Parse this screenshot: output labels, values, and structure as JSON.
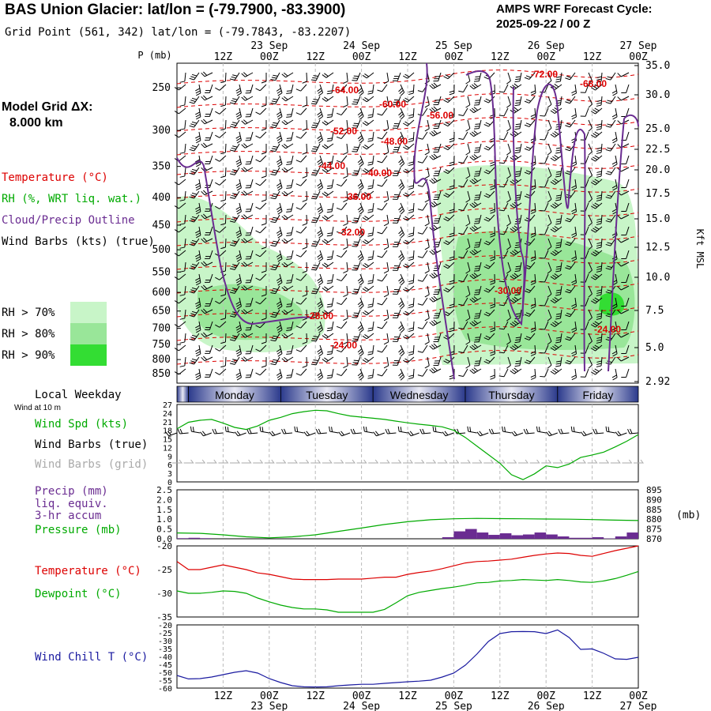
{
  "header": {
    "title": "BAS Union Glacier:  lat/lon = (-79.7900, -83.3900)",
    "subtitle": "Grid Point (561, 342) lat/lon = (-79.7843, -83.2207)",
    "cycle_line1": "AMPS WRF Forecast Cycle:",
    "cycle_line2": "2025-09-22 / 00  Z"
  },
  "side": {
    "grid_label_1": "Model Grid ΔX:",
    "grid_label_2": "8.000 km",
    "legend_temperature": "Temperature (°C)",
    "legend_rh": "RH (%, WRT liq. wat.)",
    "legend_cloud": "Cloud/Precip Outline",
    "legend_wind": "Wind Barbs (kts) (true)",
    "rh70": "RH > 70%",
    "rh80": "RH > 80%",
    "rh90": "RH > 90%",
    "colors": {
      "temperature": "#dd0000",
      "rh": "#00aa00",
      "cloud": "#6a2c91",
      "rh70": "#c8f5c8",
      "rh80": "#99e699",
      "rh90": "#33dd33"
    }
  },
  "chart_data": [
    {
      "type": "heatmap",
      "panel": "cross-section",
      "ylabel": "P (mb)",
      "y_right_label": "Kft MSL",
      "pressure_ticks": [
        "250",
        "300",
        "350",
        "400",
        "450",
        "500",
        "550",
        "600",
        "650",
        "700",
        "750",
        "800",
        "850"
      ],
      "height_ticks": [
        "35.0",
        "30.0",
        "25.0",
        "22.5",
        "20.0",
        "17.5",
        "15.0",
        "12.5",
        "10.0",
        "7.5",
        "5.0",
        "2.92"
      ],
      "time_ticks_top": [
        "12Z",
        "00Z",
        "12Z",
        "00Z",
        "12Z",
        "00Z",
        "12Z",
        "00Z",
        "12Z",
        "00Z"
      ],
      "date_ticks_top": [
        "23 Sep",
        "24 Sep",
        "25 Sep",
        "26 Sep",
        "27 Sep"
      ],
      "temperature_labels": [
        "-64.00",
        "-60.00",
        "-56.00",
        "-72.00",
        "-68.00",
        "-52.00",
        "-48.00",
        "-44.00",
        "-40.00",
        "-36.00",
        "-32.00",
        "-30.00",
        "-28.00",
        "-24.00",
        "-24.00"
      ]
    },
    {
      "type": "line",
      "panel": "surface-wind",
      "weekday_header": "Local Weekday",
      "days": [
        "Monday",
        "Tuesday",
        "Wednesday",
        "Thursday",
        "Friday"
      ],
      "wind_at_10m": "Wind at 10 m",
      "labels": [
        "Wind Spd (kts)",
        "Wind Barbs (true)",
        "Wind Barbs (grid)"
      ],
      "y_ticks": [
        "27",
        "24",
        "21",
        "18",
        "15",
        "12",
        "9",
        "6",
        "3",
        "0"
      ],
      "ylim": [
        0,
        27
      ],
      "series": [
        {
          "name": "Wind Spd (kts)",
          "x": [
            0,
            3,
            6,
            9,
            12,
            15,
            18,
            21,
            24,
            27,
            30,
            33,
            36,
            39,
            42,
            45,
            48,
            51,
            54,
            57,
            60,
            63,
            66,
            69,
            72,
            75,
            78,
            81,
            84,
            87,
            90,
            93,
            96,
            99,
            102,
            105,
            108,
            111,
            114,
            117,
            120
          ],
          "values": [
            18.5,
            20.8,
            21.5,
            21.8,
            20.5,
            19,
            18.3,
            19.5,
            21.5,
            22.5,
            23.8,
            24.5,
            25,
            24.8,
            23.8,
            23,
            22.6,
            22.2,
            21.8,
            21.2,
            20.6,
            20.1,
            19.7,
            19.2,
            18,
            15.5,
            12.5,
            9.5,
            6.5,
            2.5,
            0.8,
            2.8,
            5.6,
            5,
            6.2,
            8.5,
            9.4,
            10.4,
            12.2,
            14.2,
            16.5
          ]
        }
      ]
    },
    {
      "type": "bar",
      "panel": "precip-pressure",
      "labels": [
        "Precip (mm)",
        "liq. equiv.",
        "3-hr accum",
        "Pressure (mb)"
      ],
      "left_ticks": [
        "2.5",
        "2.0",
        "1.5",
        "1.0",
        "0.5",
        "0.0"
      ],
      "right_ticks": [
        "895",
        "890",
        "885",
        "880",
        "875",
        "870"
      ],
      "right_unit": "(mb)",
      "precip_x": [
        3,
        6,
        9,
        72,
        75,
        78,
        81,
        84,
        87,
        90,
        93,
        96,
        99,
        102,
        105,
        108,
        111,
        114,
        117,
        120
      ],
      "precip_values": [
        0.03,
        0.05,
        0.03,
        0.08,
        0.38,
        0.5,
        0.32,
        0.2,
        0.28,
        0.18,
        0.22,
        0.32,
        0.22,
        0.12,
        0.05,
        0.05,
        0.08,
        0.02,
        0.12,
        0.32
      ],
      "pressure_x": [
        0,
        6,
        12,
        18,
        24,
        30,
        36,
        42,
        48,
        54,
        60,
        66,
        72,
        78,
        84,
        90,
        96,
        102,
        108,
        114,
        120
      ],
      "pressure_values": [
        873,
        872.8,
        872,
        871,
        870.5,
        871,
        872,
        873.8,
        875.5,
        877.3,
        878.7,
        879.7,
        880.2,
        880.4,
        880.3,
        880.2,
        880.1,
        880,
        879.8,
        879.5,
        879.3
      ]
    },
    {
      "type": "line",
      "panel": "temperature-dewpoint",
      "y_ticks": [
        "-20",
        "-25",
        "-30",
        "-35"
      ],
      "ylim": [
        -35,
        -20
      ],
      "series": [
        {
          "name": "Temperature (°C)",
          "x": [
            0,
            3,
            6,
            9,
            12,
            15,
            18,
            21,
            24,
            27,
            30,
            33,
            36,
            39,
            42,
            45,
            48,
            51,
            54,
            57,
            60,
            63,
            66,
            69,
            72,
            75,
            78,
            81,
            84,
            87,
            90,
            93,
            96,
            99,
            102,
            105,
            108,
            111,
            114,
            117,
            120
          ],
          "values": [
            -23.3,
            -25,
            -25,
            -24.5,
            -24,
            -24.5,
            -25,
            -25.7,
            -26,
            -26.5,
            -27,
            -27.1,
            -27.1,
            -27.1,
            -27,
            -27,
            -27,
            -26.8,
            -26.6,
            -26.6,
            -26,
            -25.6,
            -25.3,
            -24.8,
            -24.2,
            -23.6,
            -23.3,
            -23.2,
            -23,
            -22.8,
            -22.4,
            -22,
            -21.7,
            -21.5,
            -21.6,
            -22,
            -22.2,
            -21.6,
            -21,
            -20.5,
            -20
          ]
        },
        {
          "name": "Dewpoint (°C)",
          "x": [
            0,
            3,
            6,
            9,
            12,
            15,
            18,
            21,
            24,
            27,
            30,
            33,
            36,
            39,
            42,
            45,
            48,
            51,
            54,
            57,
            60,
            63,
            66,
            69,
            72,
            75,
            78,
            81,
            84,
            87,
            90,
            93,
            96,
            99,
            102,
            105,
            108,
            111,
            114,
            117,
            120
          ],
          "values": [
            -29.5,
            -30,
            -30,
            -29.8,
            -29.5,
            -29.6,
            -30,
            -31,
            -31.8,
            -32.5,
            -33,
            -33.3,
            -33.3,
            -33.5,
            -34,
            -34,
            -34,
            -34,
            -33.4,
            -32,
            -30.5,
            -29.8,
            -29.4,
            -29,
            -28.7,
            -28.3,
            -27.8,
            -27.7,
            -27.4,
            -27.3,
            -27.1,
            -27.2,
            -27.3,
            -27.1,
            -27.3,
            -27.6,
            -27.7,
            -27.4,
            -26.9,
            -26.2,
            -25.4
          ]
        }
      ]
    },
    {
      "type": "line",
      "panel": "wind-chill",
      "y_ticks": [
        "-20",
        "-25",
        "-30",
        "-35",
        "-40",
        "-45",
        "-50",
        "-55",
        "-60"
      ],
      "ylim": [
        -60,
        -20
      ],
      "time_ticks_bottom": [
        "12Z",
        "00Z",
        "12Z",
        "00Z",
        "12Z",
        "00Z",
        "12Z",
        "00Z",
        "12Z",
        "00Z"
      ],
      "date_ticks_bottom": [
        "23 Sep",
        "24 Sep",
        "25 Sep",
        "26 Sep",
        "27 Sep"
      ],
      "series": [
        {
          "name": "Wind Chill T (°C)",
          "x": [
            0,
            3,
            6,
            9,
            12,
            15,
            18,
            21,
            24,
            27,
            30,
            33,
            36,
            39,
            42,
            45,
            48,
            51,
            54,
            57,
            60,
            63,
            66,
            69,
            72,
            75,
            78,
            81,
            84,
            87,
            90,
            93,
            96,
            99,
            102,
            105,
            108,
            111,
            114,
            117,
            120
          ],
          "values": [
            -52,
            -54.2,
            -54,
            -53,
            -51.5,
            -50,
            -49,
            -50.5,
            -54,
            -56.5,
            -58.5,
            -59.2,
            -59.3,
            -59.2,
            -58.5,
            -58,
            -57.6,
            -57.6,
            -57,
            -56.5,
            -56,
            -55.6,
            -55,
            -53,
            -50.5,
            -45.5,
            -38.5,
            -30.5,
            -25.5,
            -24.3,
            -24.2,
            -24.3,
            -25.5,
            -23.2,
            -28,
            -35.5,
            -35.2,
            -38,
            -41.5,
            -41.8,
            -40.5
          ]
        }
      ]
    }
  ]
}
